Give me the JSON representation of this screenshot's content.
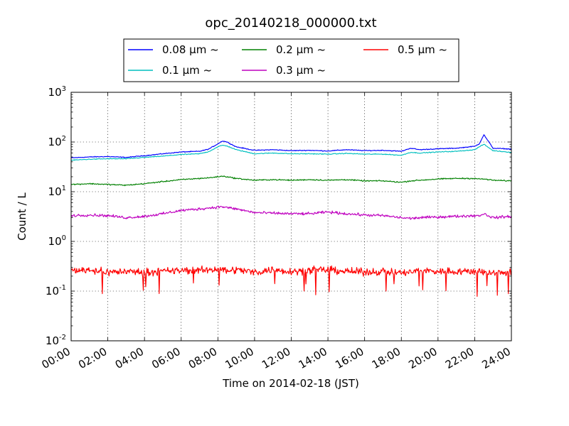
{
  "chart_data": {
    "type": "line",
    "title": "opc_20140218_000000.txt",
    "xlabel": "Time on 2014-02-18 (JST)",
    "ylabel": "Count / L",
    "yscale": "log",
    "ylim": [
      0.01,
      1000
    ],
    "xlim": [
      "00:00",
      "24:00"
    ],
    "grid": true,
    "legend_placement": "top-center",
    "x_ticks": [
      "00:00",
      "02:00",
      "04:00",
      "06:00",
      "08:00",
      "10:00",
      "12:00",
      "14:00",
      "16:00",
      "18:00",
      "20:00",
      "22:00",
      "24:00"
    ],
    "y_ticks": [
      {
        "value": 0.01,
        "base": "10",
        "exp": "-2"
      },
      {
        "value": 0.1,
        "base": "10",
        "exp": "-1"
      },
      {
        "value": 1,
        "base": "10",
        "exp": "0"
      },
      {
        "value": 10,
        "base": "10",
        "exp": "1"
      },
      {
        "value": 100,
        "base": "10",
        "exp": "2"
      },
      {
        "value": 1000,
        "base": "10",
        "exp": "3"
      }
    ],
    "x_hours": [
      0,
      1,
      2,
      3,
      4,
      5,
      6,
      7,
      7.5,
      8,
      8.25,
      8.5,
      9,
      10,
      11,
      12,
      13,
      14,
      15,
      16,
      17,
      18,
      18.5,
      19,
      20,
      21,
      22,
      22.25,
      22.5,
      23,
      24
    ],
    "series": [
      {
        "name": "0.08 μm ~",
        "color": "#0000ff",
        "values": [
          48,
          50,
          51,
          49,
          53,
          58,
          63,
          65,
          72,
          92,
          105,
          100,
          80,
          68,
          70,
          67,
          68,
          66,
          70,
          67,
          68,
          65,
          75,
          70,
          73,
          75,
          82,
          92,
          140,
          75,
          72
        ]
      },
      {
        "name": "0.1 μm ~",
        "color": "#00bfbf",
        "values": [
          43,
          45,
          46,
          46,
          49,
          52,
          56,
          58,
          64,
          80,
          86,
          83,
          70,
          58,
          60,
          58,
          58,
          57,
          59,
          57,
          57,
          54,
          62,
          60,
          63,
          65,
          70,
          80,
          90,
          67,
          62
        ]
      },
      {
        "name": "0.2 μm ~",
        "color": "#008000",
        "values": [
          14,
          14.5,
          14,
          13.5,
          14.5,
          16,
          17.5,
          18.5,
          19,
          20,
          20.5,
          20,
          18.5,
          17,
          17.5,
          17,
          17.5,
          17,
          17.5,
          16.5,
          16.5,
          15.5,
          16.5,
          17,
          18,
          18.5,
          18.5,
          18,
          18,
          17,
          16.5
        ]
      },
      {
        "name": "0.3 μm ~",
        "color": "#bf00bf",
        "values": [
          3.3,
          3.4,
          3.3,
          3.0,
          3.2,
          3.6,
          4.2,
          4.5,
          4.7,
          4.9,
          5.0,
          4.8,
          4.5,
          3.8,
          3.7,
          3.6,
          3.6,
          3.9,
          3.6,
          3.4,
          3.3,
          3.0,
          2.9,
          3.0,
          3.1,
          3.2,
          3.3,
          3.3,
          3.6,
          3.0,
          3.2
        ]
      },
      {
        "name": "0.5 μm ~",
        "color": "#ff0000",
        "values": [
          0.26,
          0.27,
          0.24,
          0.25,
          0.24,
          0.25,
          0.26,
          0.26,
          0.27,
          0.28,
          0.27,
          0.26,
          0.27,
          0.24,
          0.27,
          0.25,
          0.26,
          0.27,
          0.25,
          0.24,
          0.25,
          0.23,
          0.24,
          0.26,
          0.25,
          0.25,
          0.25,
          0.25,
          0.24,
          0.23,
          0.25
        ]
      }
    ],
    "line_colors_note": [
      "#0000ff",
      "#00bfbf",
      "#008000",
      "#bf00bf",
      "#ff0000"
    ]
  }
}
